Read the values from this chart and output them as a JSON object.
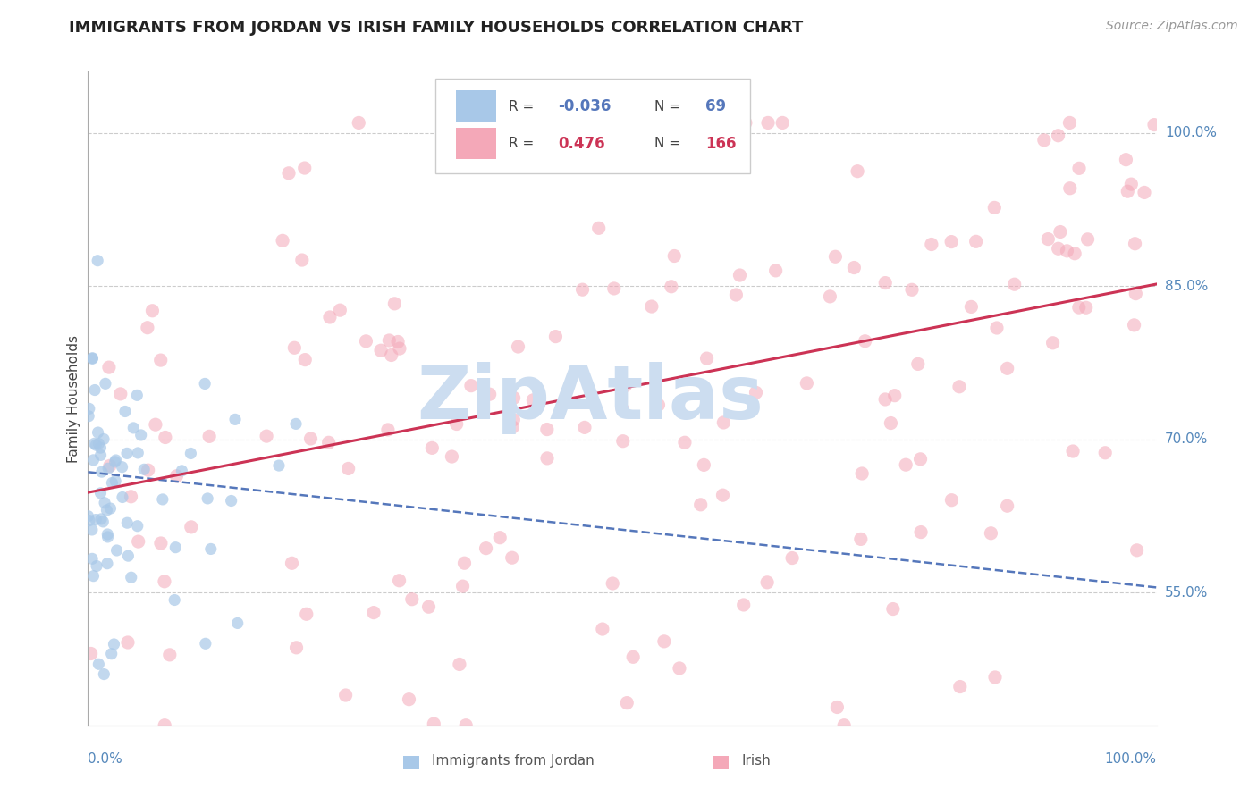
{
  "title": "IMMIGRANTS FROM JORDAN VS IRISH FAMILY HOUSEHOLDS CORRELATION CHART",
  "source": "Source: ZipAtlas.com",
  "ylabel": "Family Households",
  "ytick_labels": [
    "55.0%",
    "70.0%",
    "85.0%",
    "100.0%"
  ],
  "ytick_values": [
    0.55,
    0.7,
    0.85,
    1.0
  ],
  "xrange": [
    0.0,
    1.0
  ],
  "yrange": [
    0.42,
    1.06
  ],
  "blue_color": "#a8c8e8",
  "pink_color": "#f4a8b8",
  "blue_line_color": "#5577bb",
  "pink_line_color": "#cc3355",
  "R_blue": -0.036,
  "N_blue": 69,
  "R_pink": 0.476,
  "N_pink": 166,
  "watermark": "ZipAtlas",
  "watermark_color": "#ccddf0",
  "grid_color": "#cccccc",
  "background_color": "#ffffff",
  "title_color": "#222222",
  "axis_label_color": "#5588bb",
  "source_color": "#999999",
  "blue_line_y0": 0.668,
  "blue_line_y1": 0.555,
  "pink_line_y0": 0.648,
  "pink_line_y1": 0.852
}
